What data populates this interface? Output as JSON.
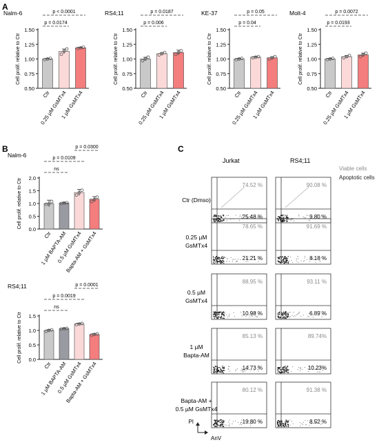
{
  "panels": {
    "A": "A",
    "B": "B",
    "C": "C"
  },
  "colors": {
    "ctr": "#c9c9c9",
    "low": "#fbd9d9",
    "high": "#f47d7d",
    "bapta": "#9a9aa2",
    "combo": "#f47d7d",
    "axis": "#222222",
    "dot": "#555555",
    "flow_text": "#8a8a8a"
  },
  "chart_data": [
    {
      "type": "bar",
      "title": "Nalm-6",
      "ylabel": "Cell prolif. relative to Ctr",
      "ylim": [
        0.5,
        1.5
      ],
      "yticks": [
        "0.50",
        "0.75",
        "1.00",
        "1.25",
        "1.50"
      ],
      "categories": [
        "Ctr",
        "0.25 µM GsMTx4",
        "1 µM GsMTx4"
      ],
      "values": [
        1.0,
        1.13,
        1.19
      ],
      "errors": [
        0.01,
        0.04,
        0.01
      ],
      "points": [
        [
          0.99,
          1.0,
          1.01
        ],
        [
          1.08,
          1.13,
          1.17
        ],
        [
          1.18,
          1.19,
          1.2
        ]
      ],
      "annotations": [
        {
          "text": "p < 0.0001",
          "from": 0,
          "to": 2,
          "level": 1
        },
        {
          "text": "p = 0.0174",
          "from": 0,
          "to": 1,
          "level": 0
        }
      ]
    },
    {
      "type": "bar",
      "title": "RS4;11",
      "ylabel": "Cell prolif. relative to Ctr",
      "ylim": [
        0.5,
        1.5
      ],
      "yticks": [
        "0.50",
        "0.75",
        "1.00",
        "1.25",
        "1.50"
      ],
      "categories": [
        "Ctr",
        "0.25 µM GsMTx4",
        "1 µM GsMTx4"
      ],
      "values": [
        1.0,
        1.09,
        1.11
      ],
      "errors": [
        0.03,
        0.02,
        0.04
      ],
      "points": [
        [
          0.97,
          1.0,
          1.03
        ],
        [
          1.07,
          1.09,
          1.11
        ],
        [
          1.08,
          1.11,
          1.14
        ]
      ],
      "annotations": [
        {
          "text": "p = 0.0187",
          "from": 0,
          "to": 2,
          "level": 1
        },
        {
          "text": "p = 0.006",
          "from": 0,
          "to": 1,
          "level": 0
        }
      ]
    },
    {
      "type": "bar",
      "title": "KE-37",
      "ylabel": "Cell prolif. relative to Ctr",
      "ylim": [
        0.5,
        1.5
      ],
      "yticks": [
        "0.50",
        "0.75",
        "1.00",
        "1.25",
        "1.50"
      ],
      "categories": [
        "Ctr",
        "0.25 µM GsMTx4",
        "1 µM GsMTx4"
      ],
      "values": [
        1.0,
        1.03,
        1.02
      ],
      "errors": [
        0.01,
        0.01,
        0.02
      ],
      "points": [
        [
          0.99,
          1.0,
          1.01
        ],
        [
          1.02,
          1.03,
          1.04
        ],
        [
          1.0,
          1.02,
          1.04
        ]
      ],
      "annotations": [
        {
          "text": "p = 0.05",
          "from": 0,
          "to": 2,
          "level": 1
        },
        {
          "text": "p = 0.04",
          "from": 0,
          "to": 1,
          "level": 0
        }
      ]
    },
    {
      "type": "bar",
      "title": "Molt-4",
      "ylabel": "Cell prolif. relative to Ctr",
      "ylim": [
        0.5,
        1.5
      ],
      "yticks": [
        "0.50",
        "0.75",
        "1.00",
        "1.25",
        "1.50"
      ],
      "categories": [
        "Ctr",
        "0.25 µM GsMTx4",
        "1 µM GsMTx4"
      ],
      "values": [
        1.0,
        1.04,
        1.07
      ],
      "errors": [
        0.01,
        0.02,
        0.03
      ],
      "points": [
        [
          0.99,
          1.0,
          1.01
        ],
        [
          1.02,
          1.04,
          1.06
        ],
        [
          1.04,
          1.07,
          1.1
        ]
      ],
      "annotations": [
        {
          "text": "p = 0.0072",
          "from": 0,
          "to": 2,
          "level": 1
        },
        {
          "text": "p = 0.0193",
          "from": 0,
          "to": 1,
          "level": 0
        }
      ]
    },
    {
      "type": "bar",
      "title": "Nalm-6",
      "ylabel": "Cell prolif. relative to Ctr",
      "ylim": [
        0,
        2.0
      ],
      "yticks": [
        "0.0",
        "0.5",
        "1.0",
        "1.5",
        "2.0"
      ],
      "categories": [
        "Ctr",
        "1 µM BAPTA-AM",
        "0.5 µM GsMTx4",
        "Bapta-AM + GsMTx4"
      ],
      "values": [
        1.0,
        1.02,
        1.43,
        1.17
      ],
      "errors": [
        0.13,
        0.03,
        0.12,
        0.1
      ],
      "points": [
        [
          0.97,
          0.98,
          1.08
        ],
        [
          1.0,
          1.02,
          1.03
        ],
        [
          1.33,
          1.42,
          1.52
        ],
        [
          1.08,
          1.15,
          1.25
        ]
      ],
      "annotations": [
        {
          "text": "ns",
          "from": 0,
          "to": 1,
          "level": 0
        },
        {
          "text": "p = 0.0109",
          "from": 0,
          "to": 2,
          "level": 1
        },
        {
          "text": "p = 0.0300",
          "from": 2,
          "to": 3,
          "level": 2
        }
      ]
    },
    {
      "type": "bar",
      "title": "RS4;11",
      "ylabel": "Cell prolif. relative to Ctr",
      "ylim": [
        0,
        1.5
      ],
      "yticks": [
        "0.0",
        "0.5",
        "1.0",
        "1.5"
      ],
      "categories": [
        "Ctr",
        "1 µM BAPTA-AM",
        "0.5 µM GsMTx4",
        "Bapta-AM + GsMTx4"
      ],
      "values": [
        1.0,
        1.06,
        1.22,
        0.86
      ],
      "errors": [
        0.03,
        0.02,
        0.03,
        0.03
      ],
      "points": [
        [
          0.97,
          1.0,
          1.02
        ],
        [
          1.05,
          1.06,
          1.07
        ],
        [
          1.2,
          1.22,
          1.24
        ],
        [
          0.84,
          0.86,
          0.88
        ]
      ],
      "annotations": [
        {
          "text": "ns",
          "from": 0,
          "to": 1,
          "level": 0
        },
        {
          "text": "p = 0.0019",
          "from": 0,
          "to": 2,
          "level": 1
        },
        {
          "text": "p = 0.0001",
          "from": 2,
          "to": 3,
          "level": 2
        }
      ]
    }
  ],
  "flow": {
    "col_labels": [
      "Jurkat",
      "RS4;11"
    ],
    "legend": {
      "viable": "Viable cells",
      "apoptotic": "Apoptotic cells"
    },
    "rows": [
      {
        "label": [
          "Ctr (Dmso)"
        ],
        "jurkat": {
          "viable": "74.52 %",
          "apoptotic": "25.48 %"
        },
        "rs411": {
          "viable": "90.08 %",
          "apoptotic": "9.80 %"
        }
      },
      {
        "label": [
          "0.25 µM",
          "GsMTx4"
        ],
        "jurkat": {
          "viable": "78.65 %",
          "apoptotic": "21.21 %"
        },
        "rs411": {
          "viable": "91.69 %",
          "apoptotic": "8.18 %"
        }
      },
      {
        "label": [
          "0.5 µM",
          "GsMTx4"
        ],
        "jurkat": {
          "viable": "88.95 %",
          "apoptotic": "10.98 %"
        },
        "rs411": {
          "viable": "93.11 %",
          "apoptotic": "6.89 %"
        }
      },
      {
        "label": [
          "1 µM",
          "Bapta-AM"
        ],
        "jurkat": {
          "viable": "85.13 %",
          "apoptotic": "14.73 %"
        },
        "rs411": {
          "viable": "89.74%",
          "apoptotic": "10.23%"
        }
      },
      {
        "label": [
          "Bapta-AM +",
          "0.5 µM GsMTx4"
        ],
        "jurkat": {
          "viable": "80.12 %",
          "apoptotic": "19.80 %"
        },
        "rs411": {
          "viable": "91.38 %",
          "apoptotic": "8.52 %"
        }
      }
    ],
    "axes": {
      "y": "PI",
      "x": "AnV"
    }
  }
}
